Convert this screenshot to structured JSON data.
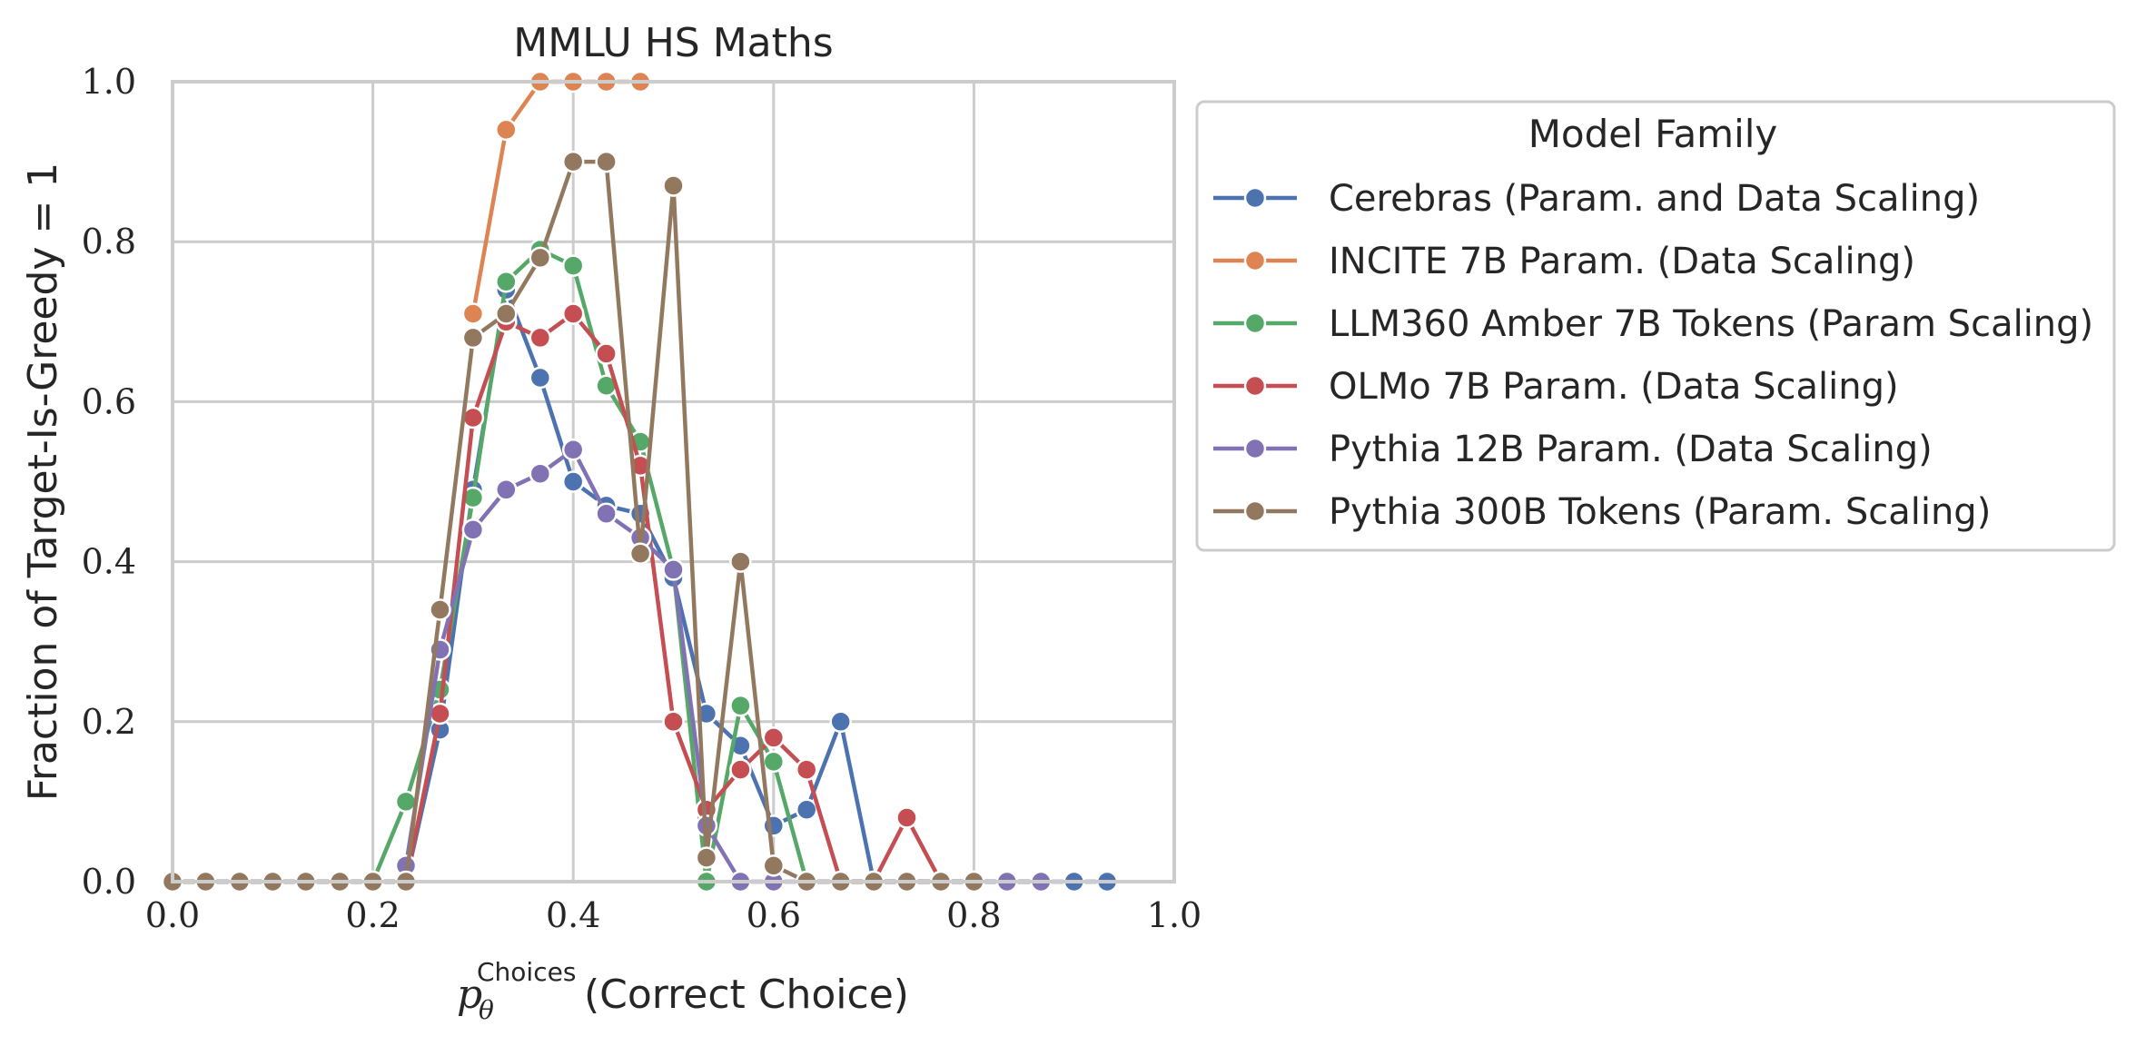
{
  "chart_data": {
    "type": "line",
    "title": "MMLU HS Maths",
    "xlabel": {
      "symbol": "p",
      "subscript": "θ",
      "superscript": "Choices",
      "suffix": "(Correct Choice)"
    },
    "ylabel": "Fraction of Target-Is-Greedy = 1",
    "xlim": [
      0.0,
      1.0
    ],
    "ylim": [
      0.0,
      1.0
    ],
    "xticks": [
      "0.0",
      "0.2",
      "0.4",
      "0.6",
      "0.8",
      "1.0"
    ],
    "yticks": [
      "0.0",
      "0.2",
      "0.4",
      "0.6",
      "0.8",
      "1.0"
    ],
    "grid": true,
    "legend": {
      "title": "Model Family",
      "placement": "outside-right-top"
    },
    "series": [
      {
        "name": "Cerebras (Param. and Data Scaling)",
        "color": "#4c72b0",
        "x": [
          0.0,
          0.033,
          0.067,
          0.1,
          0.133,
          0.167,
          0.2,
          0.233,
          0.267,
          0.3,
          0.333,
          0.367,
          0.4,
          0.433,
          0.467,
          0.5,
          0.533,
          0.567,
          0.6,
          0.633,
          0.667,
          0.7,
          0.733,
          0.767,
          0.8,
          0.833,
          0.867,
          0.9,
          0.933
        ],
        "y": [
          0.0,
          0.0,
          0.0,
          0.0,
          0.0,
          0.0,
          0.0,
          0.0,
          0.19,
          0.49,
          0.74,
          0.63,
          0.5,
          0.47,
          0.46,
          0.38,
          0.21,
          0.17,
          0.07,
          0.09,
          0.2,
          0.0,
          0.0,
          0.0,
          0.0,
          0.0,
          0.0,
          0.0,
          0.0
        ]
      },
      {
        "name": "INCITE 7B Param. (Data Scaling)",
        "color": "#dd8452",
        "x": [
          0.3,
          0.333,
          0.367,
          0.4,
          0.433,
          0.467
        ],
        "y": [
          0.71,
          0.94,
          1.0,
          1.0,
          1.0,
          1.0
        ]
      },
      {
        "name": "LLM360 Amber 7B Tokens (Param Scaling)",
        "color": "#55a868",
        "x": [
          0.2,
          0.233,
          0.267,
          0.3,
          0.333,
          0.367,
          0.4,
          0.433,
          0.467,
          0.5,
          0.533,
          0.567,
          0.6,
          0.633
        ],
        "y": [
          0.0,
          0.1,
          0.24,
          0.48,
          0.75,
          0.79,
          0.77,
          0.62,
          0.55,
          0.39,
          0.0,
          0.22,
          0.15,
          0.0
        ]
      },
      {
        "name": "OLMo 7B Param. (Data Scaling)",
        "color": "#c44e52",
        "x": [
          0.233,
          0.267,
          0.3,
          0.333,
          0.367,
          0.4,
          0.433,
          0.467,
          0.5,
          0.533,
          0.567,
          0.6,
          0.633,
          0.667,
          0.7,
          0.733,
          0.767
        ],
        "y": [
          0.0,
          0.21,
          0.58,
          0.7,
          0.68,
          0.71,
          0.66,
          0.52,
          0.2,
          0.09,
          0.14,
          0.18,
          0.14,
          0.0,
          0.0,
          0.08,
          0.0
        ]
      },
      {
        "name": "Pythia 12B Param. (Data Scaling)",
        "color": "#8172b3",
        "x": [
          0.233,
          0.267,
          0.3,
          0.333,
          0.367,
          0.4,
          0.433,
          0.467,
          0.5,
          0.533,
          0.567,
          0.6,
          0.833,
          0.867
        ],
        "y": [
          0.02,
          0.29,
          0.44,
          0.49,
          0.51,
          0.54,
          0.46,
          0.43,
          0.39,
          0.07,
          0.0,
          0.0,
          0.0,
          0.0
        ]
      },
      {
        "name": "Pythia 300B Tokens (Param. Scaling)",
        "color": "#937860",
        "x": [
          0.0,
          0.033,
          0.067,
          0.1,
          0.133,
          0.167,
          0.2,
          0.233,
          0.267,
          0.3,
          0.333,
          0.367,
          0.4,
          0.433,
          0.467,
          0.5,
          0.533,
          0.567,
          0.6,
          0.633,
          0.667,
          0.7,
          0.733,
          0.767,
          0.8
        ],
        "y": [
          0.0,
          0.0,
          0.0,
          0.0,
          0.0,
          0.0,
          0.0,
          0.0,
          0.34,
          0.68,
          0.71,
          0.78,
          0.9,
          0.9,
          0.41,
          0.87,
          0.03,
          0.4,
          0.02,
          0.0,
          0.0,
          0.0,
          0.0,
          0.0,
          0.0
        ]
      }
    ]
  }
}
